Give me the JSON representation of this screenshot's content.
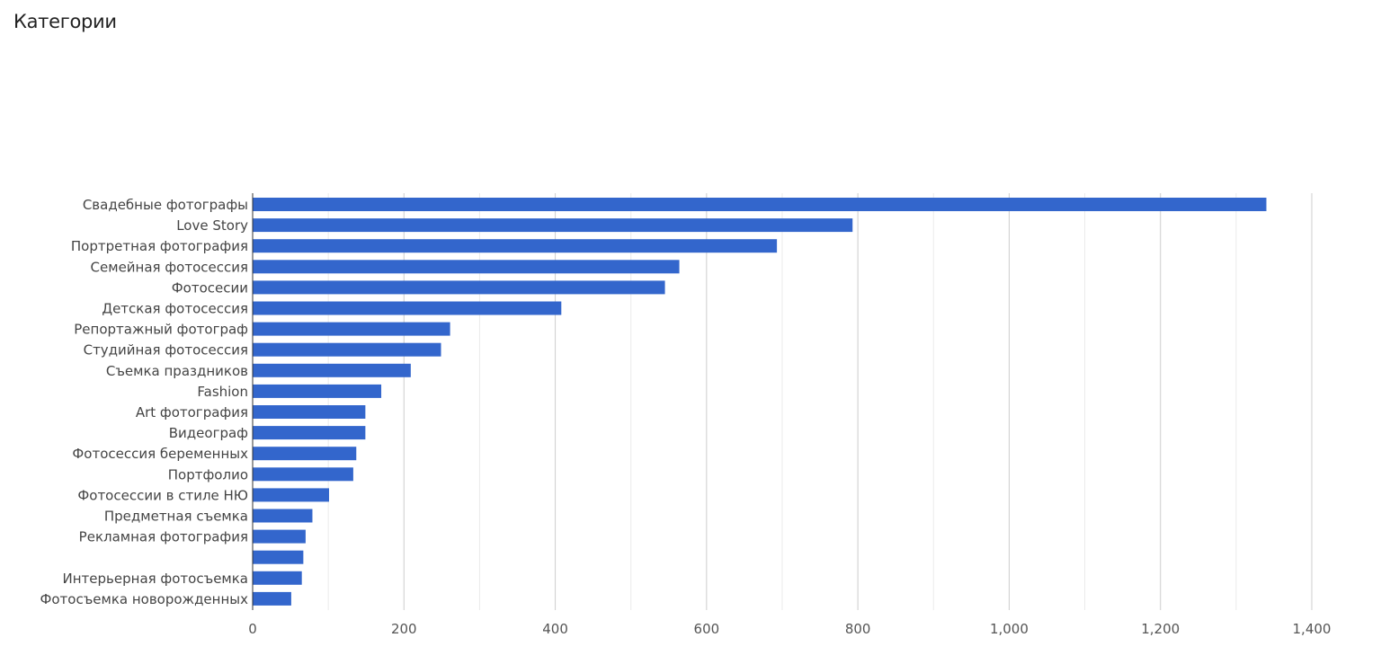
{
  "title": "Категории",
  "chart_data": {
    "type": "bar",
    "orientation": "horizontal",
    "title": "Категории",
    "xlabel": "",
    "ylabel": "",
    "xlim": [
      0,
      1400
    ],
    "grid": true,
    "legend": "none",
    "bar_color": "#3366cc",
    "major_ticks": [
      {
        "value": 0,
        "label": "0"
      },
      {
        "value": 200,
        "label": "200"
      },
      {
        "value": 400,
        "label": "400"
      },
      {
        "value": 600,
        "label": "600"
      },
      {
        "value": 800,
        "label": "800"
      },
      {
        "value": 1000,
        "label": "1,000"
      },
      {
        "value": 1200,
        "label": "1,200"
      },
      {
        "value": 1400,
        "label": "1,400"
      }
    ],
    "minor_ticks": [
      100,
      300,
      500,
      700,
      900,
      1100,
      1300
    ],
    "categories": [
      "Свадебные фотографы",
      "Love Story",
      "Портретная фотография",
      "Семейная фотосессия",
      "Фотосесии",
      "Детская фотосессия",
      "Репортажный фотограф",
      "Студийная фотосессия",
      "Съемка праздников",
      "Fashion",
      "Art фотография",
      "Видеограф",
      "Фотосессия беременных",
      "Портфолио",
      "Фотосессии в стиле НЮ",
      "Предметная съемка",
      "Рекламная фотография",
      "",
      "Интерьерная фотосъемка",
      "Фотосъемка новорожденных"
    ],
    "values": [
      1340,
      793,
      693,
      564,
      545,
      408,
      261,
      249,
      209,
      170,
      149,
      149,
      137,
      133,
      101,
      79,
      70,
      67,
      65,
      51
    ]
  }
}
